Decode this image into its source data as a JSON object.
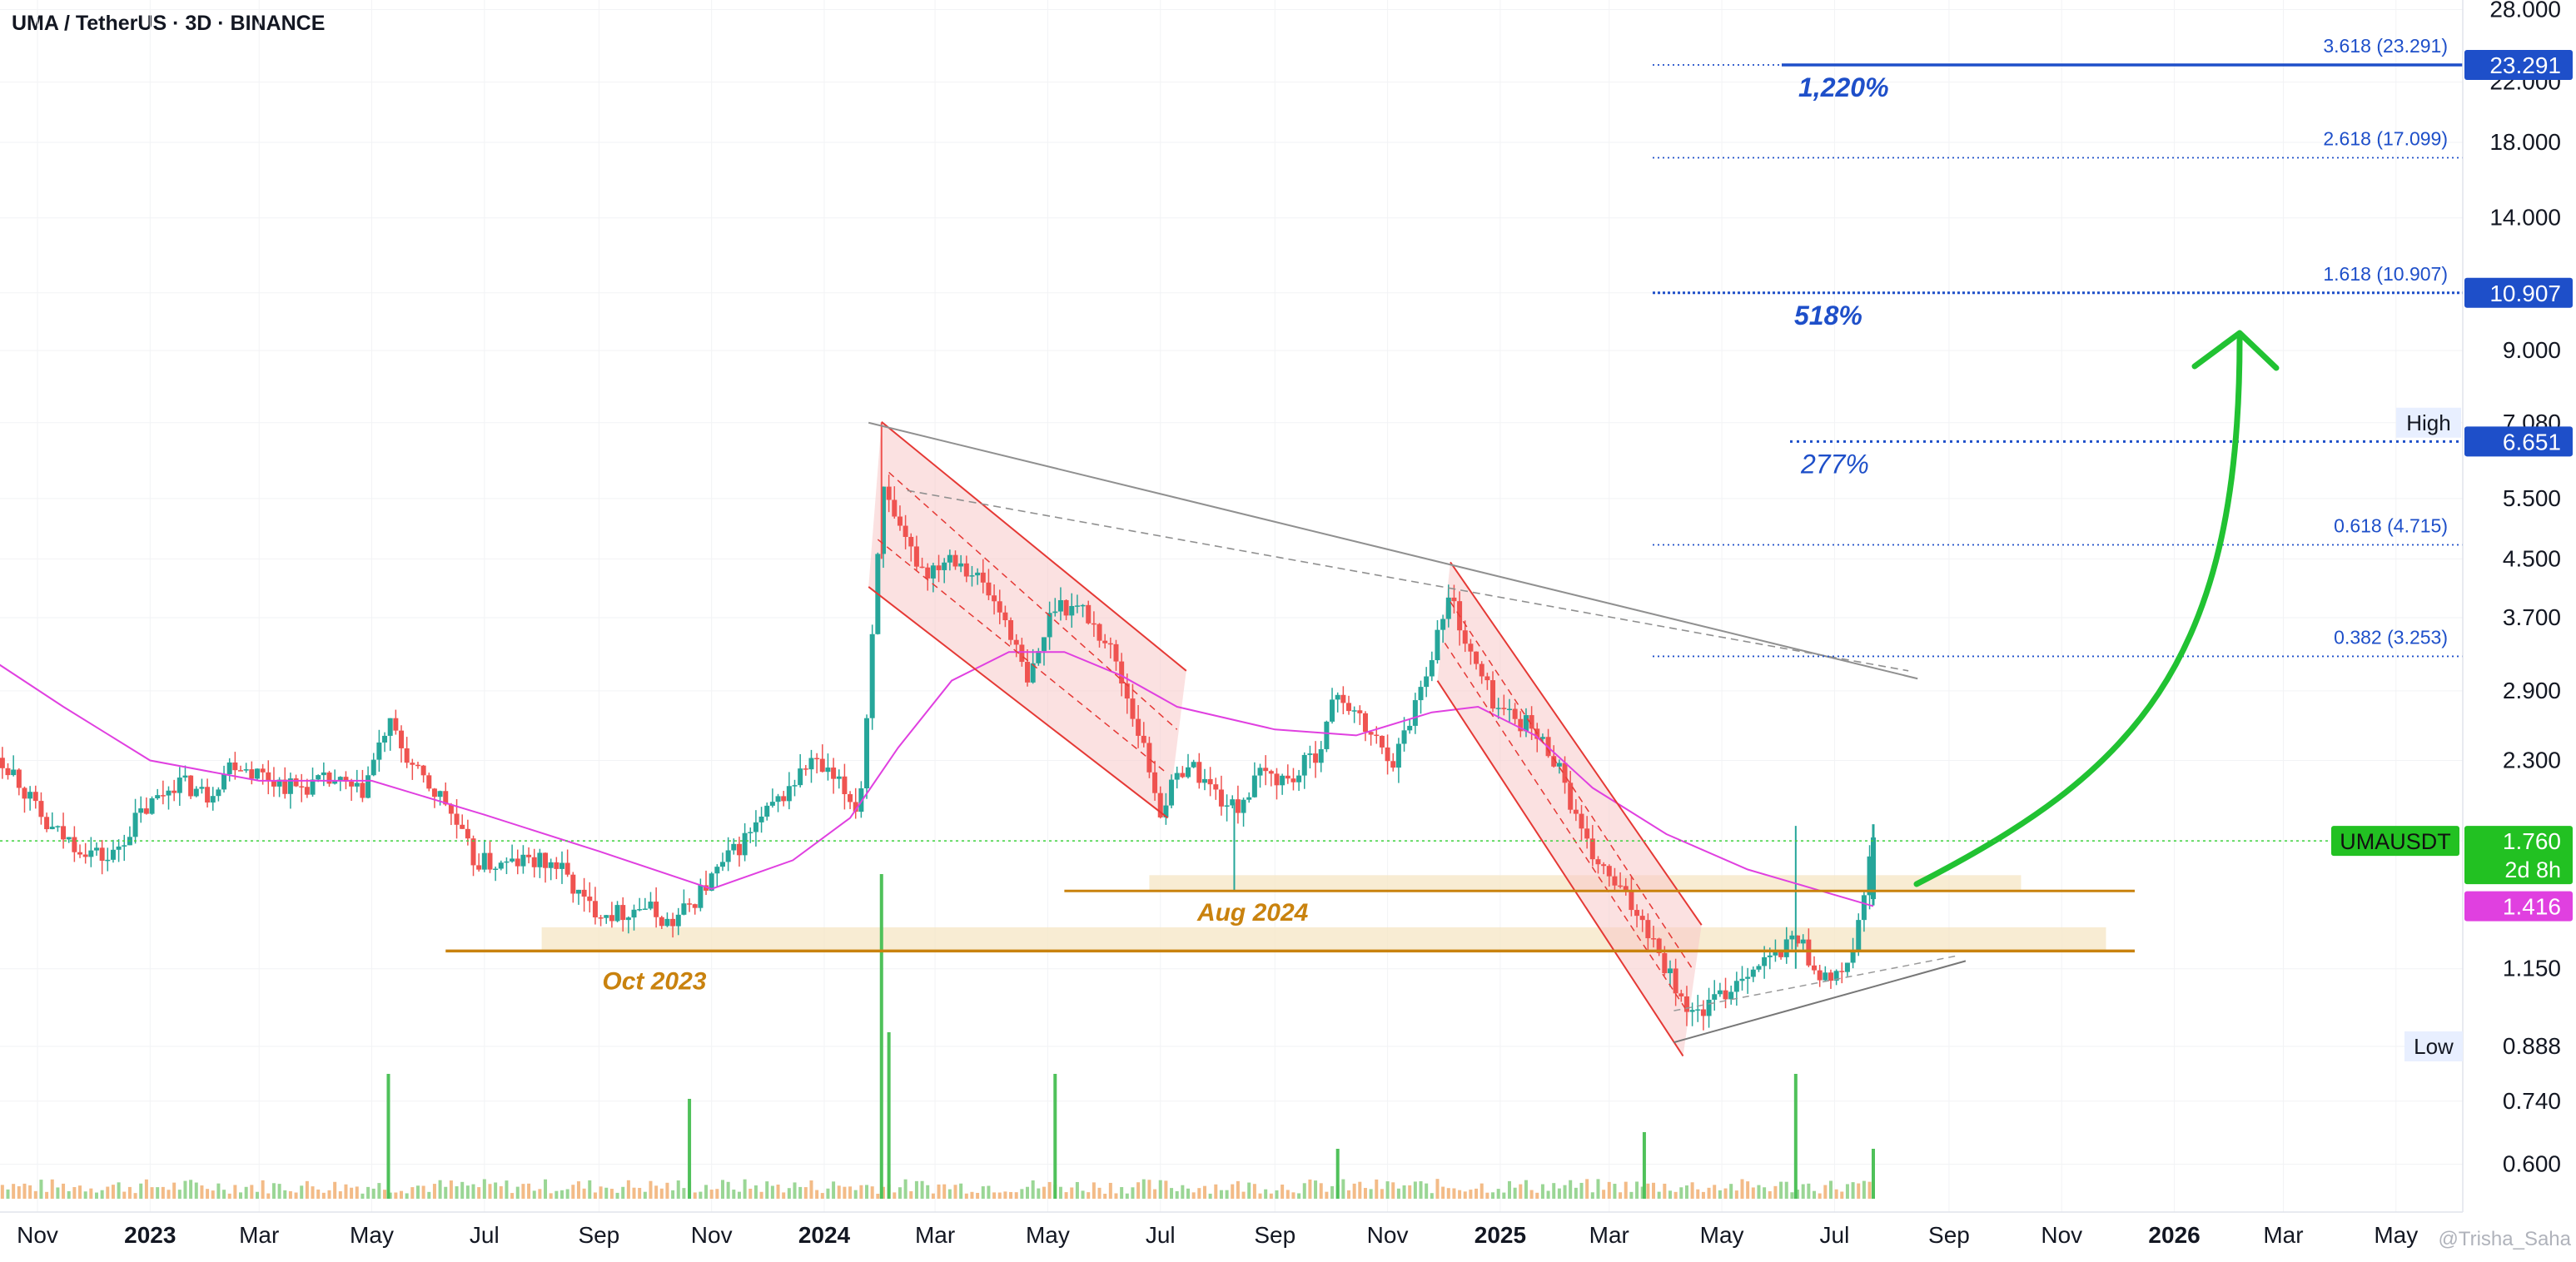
{
  "header": {
    "title": "UMA / TetherUS · 3D · BINANCE"
  },
  "chart_data": {
    "type": "candlestick",
    "title": "UMA / TetherUS · 3D · BINANCE",
    "symbol": "UMAUSDT",
    "y_scale": "log",
    "ylim": [
      0.53,
      29.5
    ],
    "y_ticks": [
      {
        "label": "28.000",
        "value": 28.0
      },
      {
        "label": "22.000",
        "value": 22.0
      },
      {
        "label": "18.000",
        "value": 18.0
      },
      {
        "label": "14.000",
        "value": 14.0
      },
      {
        "label": "10.907",
        "value": 10.907
      },
      {
        "label": "9.000",
        "value": 9.0
      },
      {
        "label": "7.080",
        "value": 7.08
      },
      {
        "label": "5.500",
        "value": 5.5
      },
      {
        "label": "4.500",
        "value": 4.5
      },
      {
        "label": "3.700",
        "value": 3.7
      },
      {
        "label": "2.900",
        "value": 2.9
      },
      {
        "label": "2.300",
        "value": 2.3
      },
      {
        "label": "1.760",
        "value": 1.76
      },
      {
        "label": "1.150",
        "value": 1.15
      },
      {
        "label": "0.888",
        "value": 0.888
      },
      {
        "label": "0.740",
        "value": 0.74
      },
      {
        "label": "0.600",
        "value": 0.6
      }
    ],
    "x_ticks": [
      {
        "label": "Nov",
        "date": "2022-11-01"
      },
      {
        "label": "2023",
        "date": "2023-01-01",
        "bold": true
      },
      {
        "label": "Mar",
        "date": "2023-03-01"
      },
      {
        "label": "May",
        "date": "2023-05-01"
      },
      {
        "label": "Jul",
        "date": "2023-07-01"
      },
      {
        "label": "Sep",
        "date": "2023-09-01"
      },
      {
        "label": "Nov",
        "date": "2023-11-01"
      },
      {
        "label": "2024",
        "date": "2024-01-01",
        "bold": true
      },
      {
        "label": "Mar",
        "date": "2024-03-01"
      },
      {
        "label": "May",
        "date": "2024-05-01"
      },
      {
        "label": "Jul",
        "date": "2024-07-01"
      },
      {
        "label": "Sep",
        "date": "2024-09-01"
      },
      {
        "label": "Nov",
        "date": "2024-11-01"
      },
      {
        "label": "2025",
        "date": "2025-01-01",
        "bold": true
      },
      {
        "label": "Mar",
        "date": "2025-03-01"
      },
      {
        "label": "May",
        "date": "2025-05-01"
      },
      {
        "label": "Jul",
        "date": "2025-07-01"
      },
      {
        "label": "Sep",
        "date": "2025-09-01"
      },
      {
        "label": "Nov",
        "date": "2025-11-01"
      },
      {
        "label": "2026",
        "date": "2026-01-01",
        "bold": true
      },
      {
        "label": "Mar",
        "date": "2026-03-01"
      },
      {
        "label": "May",
        "date": "2026-05-01"
      }
    ],
    "price_path": [
      [
        "2022-10-01",
        2.5
      ],
      [
        "2022-10-20",
        2.2
      ],
      [
        "2022-11-05",
        1.85
      ],
      [
        "2022-11-20",
        1.75
      ],
      [
        "2022-12-10",
        1.65
      ],
      [
        "2022-12-25",
        1.9
      ],
      [
        "2023-01-15",
        2.15
      ],
      [
        "2023-02-01",
        2.05
      ],
      [
        "2023-02-15",
        2.3
      ],
      [
        "2023-03-01",
        2.2
      ],
      [
        "2023-03-20",
        2.1
      ],
      [
        "2023-04-10",
        2.15
      ],
      [
        "2023-04-25",
        2.05
      ],
      [
        "2023-05-10",
        2.6
      ],
      [
        "2023-05-25",
        2.2
      ],
      [
        "2023-06-10",
        2.0
      ],
      [
        "2023-06-25",
        1.65
      ],
      [
        "2023-07-10",
        1.62
      ],
      [
        "2023-07-25",
        1.65
      ],
      [
        "2023-08-10",
        1.62
      ],
      [
        "2023-08-25",
        1.42
      ],
      [
        "2023-09-10",
        1.38
      ],
      [
        "2023-09-25",
        1.42
      ],
      [
        "2023-10-10",
        1.33
      ],
      [
        "2023-10-20",
        1.42
      ],
      [
        "2023-11-05",
        1.6
      ],
      [
        "2023-11-25",
        1.85
      ],
      [
        "2023-12-10",
        2.05
      ],
      [
        "2023-12-25",
        2.3
      ],
      [
        "2024-01-10",
        2.1
      ],
      [
        "2024-01-20",
        1.95
      ],
      [
        "2024-01-25",
        2.9
      ],
      [
        "2024-02-01",
        5.7
      ],
      [
        "2024-02-10",
        4.9
      ],
      [
        "2024-02-25",
        4.3
      ],
      [
        "2024-03-10",
        4.6
      ],
      [
        "2024-03-25",
        4.2
      ],
      [
        "2024-04-10",
        3.6
      ],
      [
        "2024-04-20",
        2.95
      ],
      [
        "2024-05-05",
        3.9
      ],
      [
        "2024-05-20",
        3.8
      ],
      [
        "2024-06-05",
        3.3
      ],
      [
        "2024-06-20",
        2.5
      ],
      [
        "2024-07-01",
        1.95
      ],
      [
        "2024-07-15",
        2.3
      ],
      [
        "2024-08-01",
        2.05
      ],
      [
        "2024-08-10",
        1.95
      ],
      [
        "2024-08-25",
        2.2
      ],
      [
        "2024-09-10",
        2.15
      ],
      [
        "2024-09-25",
        2.4
      ],
      [
        "2024-10-05",
        2.9
      ],
      [
        "2024-10-20",
        2.55
      ],
      [
        "2024-11-05",
        2.3
      ],
      [
        "2024-11-20",
        3.0
      ],
      [
        "2024-12-05",
        4.0
      ],
      [
        "2024-12-15",
        3.3
      ],
      [
        "2024-12-30",
        2.75
      ],
      [
        "2025-01-15",
        2.6
      ],
      [
        "2025-02-01",
        2.3
      ],
      [
        "2025-02-15",
        1.75
      ],
      [
        "2025-03-01",
        1.55
      ],
      [
        "2025-03-20",
        1.35
      ],
      [
        "2025-04-05",
        1.1
      ],
      [
        "2025-04-15",
        0.98
      ],
      [
        "2025-05-01",
        1.05
      ],
      [
        "2025-05-15",
        1.15
      ],
      [
        "2025-06-01",
        1.2
      ],
      [
        "2025-06-10",
        1.3
      ],
      [
        "2025-06-20",
        1.15
      ],
      [
        "2025-07-01",
        1.1
      ],
      [
        "2025-07-10",
        1.2
      ],
      [
        "2025-07-17",
        1.45
      ],
      [
        "2025-07-22",
        1.76
      ]
    ],
    "ema_path": [
      [
        "2022-10-01",
        3.3
      ],
      [
        "2022-11-15",
        2.75
      ],
      [
        "2023-01-01",
        2.3
      ],
      [
        "2023-03-01",
        2.15
      ],
      [
        "2023-05-01",
        2.15
      ],
      [
        "2023-07-01",
        1.92
      ],
      [
        "2023-09-01",
        1.7
      ],
      [
        "2023-11-01",
        1.5
      ],
      [
        "2023-12-15",
        1.65
      ],
      [
        "2024-01-15",
        1.9
      ],
      [
        "2024-02-10",
        2.4
      ],
      [
        "2024-03-10",
        3.0
      ],
      [
        "2024-04-10",
        3.3
      ],
      [
        "2024-05-10",
        3.3
      ],
      [
        "2024-06-10",
        3.05
      ],
      [
        "2024-07-10",
        2.75
      ],
      [
        "2024-09-01",
        2.55
      ],
      [
        "2024-10-15",
        2.5
      ],
      [
        "2024-11-25",
        2.7
      ],
      [
        "2024-12-20",
        2.75
      ],
      [
        "2025-01-20",
        2.5
      ],
      [
        "2025-02-20",
        2.1
      ],
      [
        "2025-04-01",
        1.8
      ],
      [
        "2025-05-15",
        1.6
      ],
      [
        "2025-06-20",
        1.5
      ],
      [
        "2025-07-22",
        1.416
      ]
    ],
    "levels": [
      {
        "label": "3.618 (23.291)",
        "value": 23.291
      },
      {
        "label": "2.618 (17.099)",
        "value": 17.099
      },
      {
        "label": "1.618 (10.907)",
        "value": 10.907
      },
      {
        "label": "0.618 (4.715)",
        "value": 4.715
      },
      {
        "label": "0.382 (3.253)",
        "value": 3.253
      }
    ],
    "targets": [
      {
        "label": "1,220%",
        "value": 23.291
      },
      {
        "label": "518%",
        "value": 10.907
      },
      {
        "label": "277%",
        "value": 6.651
      }
    ],
    "support_lines": [
      {
        "label": "Oct 2023",
        "value": 1.22
      },
      {
        "label": "Aug 2024",
        "value": 1.49
      }
    ],
    "price_tags": [
      {
        "label": "23.291",
        "value": 23.291,
        "color": "#1e4fc9"
      },
      {
        "label": "10.907",
        "value": 10.907,
        "color": "#1e4fc9"
      },
      {
        "label": "6.651",
        "value": 6.651,
        "color": "#1e4fc9"
      },
      {
        "label": "1.760",
        "value": 1.76,
        "color": "#22c122",
        "prefix": "UMAUSDT",
        "sub": "2d 8h"
      },
      {
        "label": "1.416",
        "value": 1.416,
        "color": "#e040e0"
      }
    ],
    "high": {
      "label": "High",
      "value": 7.08,
      "value_label": "7.080"
    },
    "low": {
      "label": "Low",
      "value": 0.888,
      "value_label": "0.888"
    },
    "last_price": 1.76,
    "colors": {
      "up": "#26a69a",
      "down": "#ef5350",
      "ema": "#e040e0",
      "fib": "#1e4fc9",
      "support": "#c9820e",
      "arrow": "#21c232",
      "channel": "#e53935",
      "trend": "#8a8a8a"
    },
    "watermark": "@Trisha_Saha"
  }
}
